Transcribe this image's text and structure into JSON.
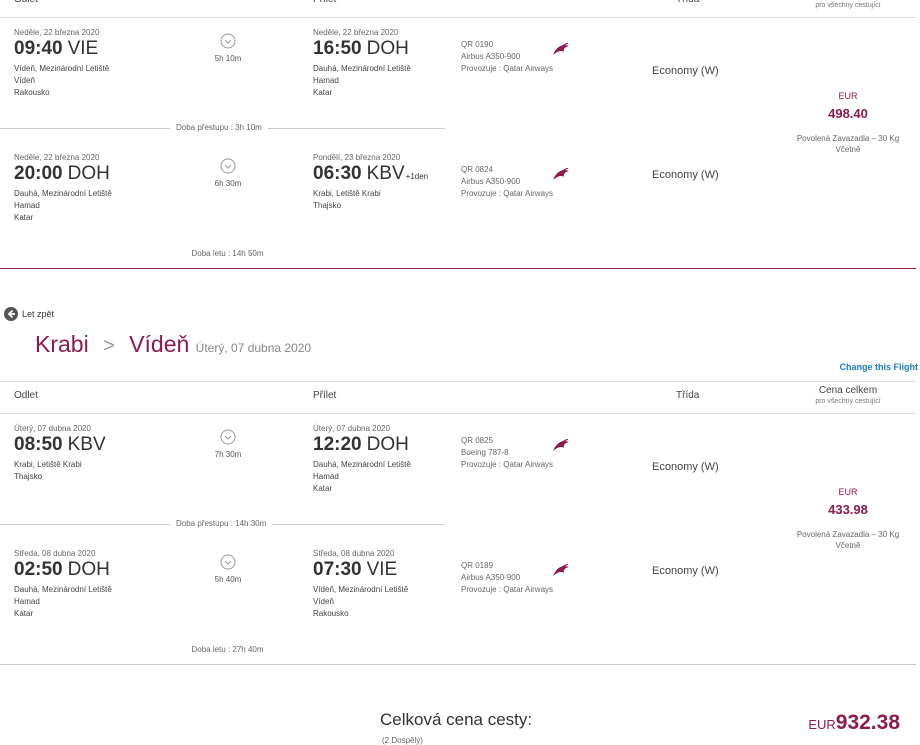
{
  "legs": [
    {
      "header": {
        "departure": "Odlet",
        "arrival": "Přílet",
        "class": "Třída",
        "price_sub": "pro všechny cestující"
      },
      "segments": [
        {
          "departure": {
            "date": "Neděle, 22 března 2020",
            "time": "09:40",
            "code": "VIE",
            "lines": [
              "Vídeň, Mezinárodní Letiště",
              "Vídeň",
              "Rakousko"
            ]
          },
          "duration": "5h 10m",
          "arrival": {
            "date": "Neděle, 22 března 2020",
            "time": "16:50",
            "code": "DOH",
            "lines": [
              "Dauhá, Mezinárodní Letiště",
              "Hamad",
              "Katar"
            ]
          },
          "flight": {
            "number": "QR 0190",
            "aircraft": "Airbus A350-900",
            "operator": "Provozuje : Qatar Airways"
          },
          "class": "Economy (W)"
        },
        {
          "departure": {
            "date": "Neděle, 22 března 2020",
            "time": "20:00",
            "code": "DOH",
            "lines": [
              "Dauhá, Mezinárodní Letiště",
              "Hamad",
              "Katar"
            ]
          },
          "duration": "6h 30m",
          "arrival": {
            "date": "Pondělí, 23 března 2020",
            "time": "06:30",
            "code": "KBV",
            "next_day": "+1den",
            "lines": [
              "Krabi, Letiště Krabi",
              "Thajsko"
            ]
          },
          "flight": {
            "number": "QR 0824",
            "aircraft": "Airbus A350-900",
            "operator": "Provozuje : Qatar Airways"
          },
          "class": "Economy (W)"
        }
      ],
      "layover": "Doba přestupu : 3h 10m",
      "total_duration": "Doba letu : 14h 50m",
      "price": {
        "currency": "EUR",
        "amount": "498.40",
        "baggage": "Povolená Zavazadla – 30 Kg",
        "included": "Včetně"
      }
    },
    {
      "header": {
        "departure": "Odlet",
        "arrival": "Přílet",
        "class": "Třída",
        "price": "Cena celkem",
        "price_sub": "pro všechny cestující"
      },
      "segments": [
        {
          "departure": {
            "date": "Úterý, 07 dubna 2020",
            "time": "08:50",
            "code": "KBV",
            "lines": [
              "Krabi, Letiště Krabi",
              "Thajsko"
            ]
          },
          "duration": "7h 30m",
          "arrival": {
            "date": "Úterý, 07 dubna 2020",
            "time": "12:20",
            "code": "DOH",
            "lines": [
              "Dauhá, Mezinárodní Letiště",
              "Hamad",
              "Katar"
            ]
          },
          "flight": {
            "number": "QR 0825",
            "aircraft": "Boeing 787-8",
            "operator": "Provozuje : Qatar Airways"
          },
          "class": "Economy (W)"
        },
        {
          "departure": {
            "date": "Středa, 08 dubna 2020",
            "time": "02:50",
            "code": "DOH",
            "lines": [
              "Dauhá, Mezinárodní Letiště",
              "Hamad",
              "Katar"
            ]
          },
          "duration": "5h 40m",
          "arrival": {
            "date": "Středa, 08 dubna 2020",
            "time": "07:30",
            "code": "VIE",
            "lines": [
              "Vídeň, Mezinárodní Letiště",
              "Vídeň",
              "Rakousko"
            ]
          },
          "flight": {
            "number": "QR 0189",
            "aircraft": "Airbus A350-900",
            "operator": "Provozuje : Qatar Airways"
          },
          "class": "Economy (W)"
        }
      ],
      "layover": "Doba přestupu : 14h 30m",
      "total_duration": "Doba letu : 27h 40m",
      "price": {
        "currency": "EUR",
        "amount": "433.98",
        "baggage": "Povolená Zavazadla – 30 Kg",
        "included": "Včetně"
      }
    }
  ],
  "return_section": {
    "back_link": "Let zpět",
    "from": "Krabi",
    "separator": ">",
    "to": "Vídeň",
    "date": "Úterý, 07 dubna 2020",
    "change_link": "Change this Flight"
  },
  "total": {
    "label": "Celková cena cesty:",
    "passengers": "(2 Dospělý)",
    "currency": "EUR",
    "amount": "932.38"
  }
}
